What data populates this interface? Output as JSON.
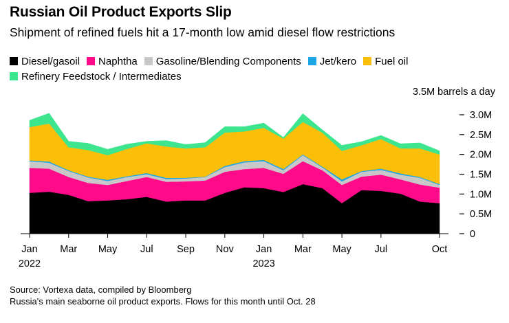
{
  "title": "Russian Oil Product Exports Slip",
  "subtitle": "Shipment of refined fuels hit a 17-month low amid diesel flow restrictions",
  "source": "Source: Vortexa data, compiled by Bloomberg",
  "note": "Russia's main seaborne oil product exports. Flows for this month until Oct. 28",
  "chart_data": {
    "type": "area",
    "stacked": true,
    "unit_label": "3.5M barrels a day",
    "ylim": [
      0,
      3.5
    ],
    "yticks": [
      0,
      0.5,
      1.0,
      1.5,
      2.0,
      2.5,
      3.0
    ],
    "ytick_labels": [
      "0",
      "0.5M",
      "1.0M",
      "1.5M",
      "2.0M",
      "2.5M",
      "3.0M"
    ],
    "x": [
      "2022-01",
      "2022-02",
      "2022-03",
      "2022-04",
      "2022-05",
      "2022-06",
      "2022-07",
      "2022-08",
      "2022-09",
      "2022-10",
      "2022-11",
      "2022-12",
      "2023-01",
      "2023-02",
      "2023-03",
      "2023-04",
      "2023-05",
      "2023-06",
      "2023-07",
      "2023-08",
      "2023-09",
      "2023-10"
    ],
    "xtick_labels": [
      {
        "month": "Jan",
        "year": "2022"
      },
      {
        "month": "Mar",
        "year": ""
      },
      {
        "month": "May",
        "year": ""
      },
      {
        "month": "Jul",
        "year": ""
      },
      {
        "month": "Sep",
        "year": ""
      },
      {
        "month": "Nov",
        "year": ""
      },
      {
        "month": "Jan",
        "year": "2023"
      },
      {
        "month": "Mar",
        "year": ""
      },
      {
        "month": "May",
        "year": ""
      },
      {
        "month": "Jul",
        "year": ""
      },
      {
        "month": "Oct",
        "year": ""
      }
    ],
    "xtick_index": [
      0,
      2,
      4,
      6,
      8,
      10,
      12,
      14,
      16,
      18,
      21
    ],
    "legend_placement": "top",
    "grid": false,
    "series": [
      {
        "name": "Diesel/gasoil",
        "color": "#000000",
        "values": [
          1.03,
          1.06,
          0.98,
          0.82,
          0.84,
          0.87,
          0.93,
          0.81,
          0.84,
          0.84,
          1.03,
          1.17,
          1.15,
          1.05,
          1.25,
          1.15,
          0.77,
          1.1,
          1.08,
          1.01,
          0.81,
          0.77
        ]
      },
      {
        "name": "Naphtha",
        "color": "#ff0b8a",
        "values": [
          0.63,
          0.58,
          0.45,
          0.46,
          0.39,
          0.46,
          0.5,
          0.5,
          0.48,
          0.5,
          0.53,
          0.46,
          0.51,
          0.46,
          0.58,
          0.45,
          0.46,
          0.34,
          0.41,
          0.36,
          0.43,
          0.39
        ]
      },
      {
        "name": "Gasoline/Blending Components",
        "color": "#c8c8c8",
        "values": [
          0.17,
          0.15,
          0.15,
          0.14,
          0.1,
          0.1,
          0.07,
          0.07,
          0.07,
          0.09,
          0.12,
          0.17,
          0.17,
          0.09,
          0.15,
          0.07,
          0.09,
          0.12,
          0.12,
          0.12,
          0.17,
          0.07
        ]
      },
      {
        "name": "Jet/kero",
        "color": "#1ea7e6",
        "values": [
          0.02,
          0.03,
          0.02,
          0.02,
          0.03,
          0.02,
          0.03,
          0.03,
          0.02,
          0.01,
          0.03,
          0.03,
          0.03,
          0.03,
          0.02,
          0.02,
          0.05,
          0.02,
          0.03,
          0.03,
          0.02,
          0.02
        ]
      },
      {
        "name": "Fuel oil",
        "color": "#fbbf0a",
        "values": [
          0.84,
          0.96,
          0.58,
          0.67,
          0.62,
          0.69,
          0.75,
          0.79,
          0.74,
          0.74,
          0.84,
          0.75,
          0.81,
          0.77,
          0.82,
          0.86,
          0.72,
          0.65,
          0.75,
          0.63,
          0.72,
          0.75
        ]
      },
      {
        "name": "Refinery Feedstock / Intermediates",
        "color": "#3ee58f",
        "values": [
          0.17,
          0.26,
          0.15,
          0.17,
          0.15,
          0.12,
          0.05,
          0.15,
          0.1,
          0.12,
          0.15,
          0.12,
          0.12,
          0.03,
          0.21,
          0.07,
          0.14,
          0.09,
          0.09,
          0.12,
          0.14,
          0.09
        ]
      }
    ]
  }
}
